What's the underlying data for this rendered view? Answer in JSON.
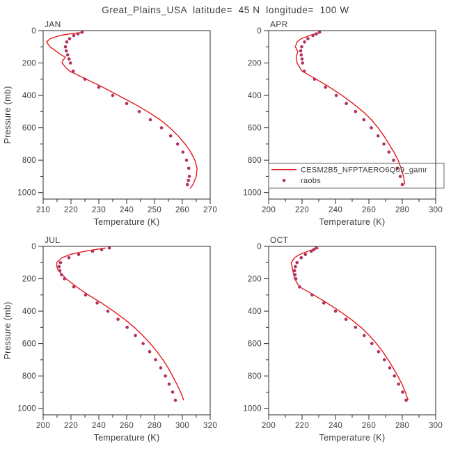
{
  "title": "Great_Plains_USA  latitude=  45 N  longitude=  100 W",
  "colors": {
    "model_line": "#e31a1c",
    "raobs_dot": "#b03060",
    "axis": "#2b2b2b",
    "text": "#3a3a3a"
  },
  "legend": {
    "location_panel": "APR",
    "entries": [
      {
        "label": "CESM2B5_NFPTAERO6Q09_gamr",
        "symbol": "line"
      },
      {
        "label": "raobs",
        "symbol": "dot"
      }
    ]
  },
  "chart_data": [
    {
      "type": "line",
      "title": "JAN",
      "xlabel": "Temperature (K)",
      "ylabel": "Pressure (mb)",
      "show_ylabel": true,
      "legend": false,
      "xlim": [
        210,
        270
      ],
      "xticks": [
        210,
        220,
        230,
        240,
        250,
        260,
        270
      ],
      "xminor": 5,
      "ylim": [
        0,
        1040
      ],
      "yticks": [
        0,
        200,
        400,
        600,
        800,
        1000
      ],
      "yminor": 100,
      "series": [
        {
          "name": "CESM2B5_NFPTAERO6Q09_gamr",
          "style": "line",
          "pressure": [
            10,
            20,
            30,
            50,
            70,
            100,
            125,
            150,
            165,
            185,
            200,
            225,
            250,
            300,
            350,
            400,
            450,
            500,
            550,
            600,
            650,
            700,
            750,
            800,
            850,
            900,
            950,
            975
          ],
          "temperature": [
            224.5,
            219.5,
            216.0,
            212.5,
            211.2,
            212.5,
            214.5,
            216.5,
            218.0,
            217.0,
            216.8,
            218.0,
            219.5,
            225.5,
            231.5,
            237.0,
            242.5,
            247.5,
            252.0,
            255.5,
            258.5,
            261.0,
            263.0,
            264.5,
            265.3,
            265.0,
            263.8,
            262.8
          ]
        },
        {
          "name": "raobs",
          "style": "markers",
          "pressure": [
            10,
            20,
            30,
            50,
            70,
            100,
            125,
            150,
            175,
            200,
            250,
            300,
            350,
            400,
            450,
            500,
            550,
            600,
            650,
            700,
            750,
            800,
            850,
            900,
            925,
            950
          ],
          "temperature": [
            224.0,
            222.5,
            221.0,
            219.5,
            218.5,
            218.0,
            218.3,
            218.8,
            219.3,
            219.8,
            220.8,
            225.0,
            230.0,
            235.0,
            240.0,
            244.5,
            248.5,
            252.5,
            255.8,
            258.3,
            260.2,
            261.5,
            262.3,
            262.5,
            262.2,
            261.8
          ]
        }
      ]
    },
    {
      "type": "line",
      "title": "APR",
      "xlabel": "Temperature (K)",
      "ylabel": "Pressure (mb)",
      "show_ylabel": false,
      "legend": true,
      "xlim": [
        200,
        300
      ],
      "xticks": [
        200,
        220,
        240,
        260,
        280,
        300
      ],
      "xminor": 10,
      "ylim": [
        0,
        1040
      ],
      "yticks": [
        0,
        200,
        400,
        600,
        800,
        1000
      ],
      "yminor": 100,
      "series": [
        {
          "name": "CESM2B5_NFPTAERO6Q09_gamr",
          "style": "line",
          "pressure": [
            10,
            20,
            30,
            50,
            70,
            100,
            130,
            160,
            200,
            250,
            300,
            350,
            400,
            450,
            500,
            550,
            600,
            650,
            700,
            750,
            800,
            850,
            900,
            950
          ],
          "temperature": [
            231.5,
            227.5,
            224.5,
            219.5,
            217.0,
            216.0,
            217.5,
            216.5,
            217.0,
            220.0,
            228.5,
            236.5,
            244.0,
            250.5,
            256.5,
            261.5,
            265.5,
            269.0,
            272.0,
            275.0,
            277.5,
            279.3,
            280.8,
            281.5
          ]
        },
        {
          "name": "raobs",
          "style": "markers",
          "pressure": [
            10,
            20,
            30,
            50,
            70,
            100,
            125,
            150,
            175,
            200,
            250,
            300,
            350,
            400,
            450,
            500,
            550,
            600,
            650,
            700,
            750,
            800,
            850,
            900,
            950
          ],
          "temperature": [
            230.5,
            228.5,
            226.5,
            223.5,
            221.5,
            219.8,
            219.2,
            219.5,
            220.0,
            220.3,
            221.3,
            227.5,
            234.0,
            240.5,
            246.5,
            252.0,
            257.0,
            261.5,
            265.5,
            269.0,
            272.0,
            274.8,
            277.0,
            278.8,
            280.0
          ]
        }
      ]
    },
    {
      "type": "line",
      "title": "JUL",
      "xlabel": "Temperature (K)",
      "ylabel": "Pressure (mb)",
      "show_ylabel": true,
      "legend": false,
      "xlim": [
        200,
        320
      ],
      "xticks": [
        200,
        220,
        240,
        260,
        280,
        300,
        320
      ],
      "xminor": 10,
      "ylim": [
        0,
        1040
      ],
      "yticks": [
        0,
        200,
        400,
        600,
        800,
        1000
      ],
      "yminor": 100,
      "series": [
        {
          "name": "CESM2B5_NFPTAERO6Q09_gamr",
          "style": "line",
          "pressure": [
            10,
            20,
            30,
            50,
            70,
            100,
            125,
            150,
            200,
            250,
            300,
            350,
            400,
            450,
            500,
            550,
            600,
            650,
            700,
            750,
            800,
            850,
            900,
            950
          ],
          "temperature": [
            245.0,
            237.0,
            230.0,
            219.5,
            213.5,
            209.8,
            209.8,
            211.0,
            216.5,
            224.0,
            232.5,
            242.0,
            250.5,
            258.5,
            265.5,
            271.5,
            277.0,
            281.8,
            286.0,
            289.8,
            293.0,
            296.0,
            298.8,
            301.0
          ]
        },
        {
          "name": "raobs",
          "style": "markers",
          "pressure": [
            10,
            20,
            30,
            50,
            70,
            100,
            125,
            150,
            175,
            200,
            250,
            300,
            350,
            400,
            450,
            500,
            550,
            600,
            650,
            700,
            750,
            800,
            850,
            900,
            950
          ],
          "temperature": [
            247.5,
            242.0,
            235.5,
            225.5,
            218.5,
            212.5,
            211.5,
            212.0,
            213.2,
            215.3,
            222.0,
            230.5,
            238.8,
            246.5,
            253.8,
            260.3,
            266.3,
            271.8,
            276.5,
            280.8,
            284.5,
            287.8,
            290.5,
            293.0,
            295.0
          ]
        }
      ]
    },
    {
      "type": "line",
      "title": "OCT",
      "xlabel": "Temperature (K)",
      "ylabel": "Pressure (mb)",
      "show_ylabel": false,
      "legend": false,
      "xlim": [
        200,
        300
      ],
      "xticks": [
        200,
        220,
        240,
        260,
        280,
        300
      ],
      "xminor": 10,
      "ylim": [
        0,
        1040
      ],
      "yticks": [
        0,
        200,
        400,
        600,
        800,
        1000
      ],
      "yminor": 100,
      "series": [
        {
          "name": "CESM2B5_NFPTAERO6Q09_gamr",
          "style": "line",
          "pressure": [
            10,
            20,
            30,
            50,
            70,
            100,
            150,
            200,
            250,
            300,
            350,
            400,
            450,
            500,
            550,
            600,
            650,
            700,
            750,
            800,
            850,
            900,
            950
          ],
          "temperature": [
            230.0,
            226.5,
            223.5,
            218.5,
            215.5,
            213.5,
            214.5,
            215.5,
            218.5,
            227.0,
            235.0,
            242.5,
            249.3,
            255.3,
            260.3,
            264.5,
            268.3,
            271.5,
            274.5,
            277.3,
            279.8,
            281.8,
            283.5
          ]
        },
        {
          "name": "raobs",
          "style": "markers",
          "pressure": [
            10,
            20,
            30,
            50,
            70,
            100,
            125,
            150,
            175,
            200,
            250,
            300,
            350,
            400,
            450,
            500,
            550,
            600,
            650,
            700,
            750,
            800,
            850,
            900,
            950
          ],
          "temperature": [
            228.5,
            227.0,
            225.5,
            222.0,
            219.5,
            217.0,
            216.0,
            215.5,
            215.8,
            216.3,
            218.5,
            226.0,
            233.0,
            240.0,
            246.3,
            252.0,
            257.2,
            261.8,
            265.8,
            269.3,
            272.5,
            275.3,
            277.8,
            280.2,
            282.3
          ]
        }
      ]
    }
  ]
}
